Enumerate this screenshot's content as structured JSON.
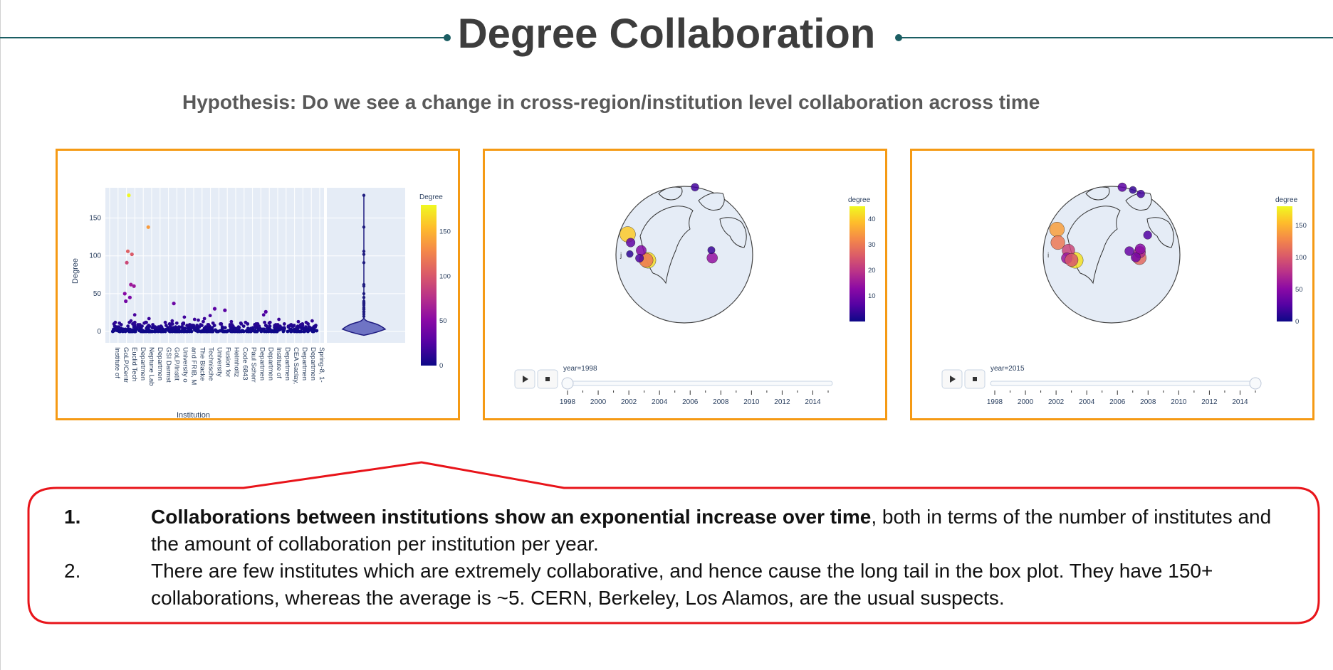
{
  "slide": {
    "title": "Degree Collaboration",
    "subtitle": "Hypothesis: Do we see a change in cross-region/institution level collaboration across time",
    "colors": {
      "accent_line": "#1b5e63",
      "panel_border": "#f59a14",
      "callout_border": "#e8141a"
    }
  },
  "chart_data": [
    {
      "type": "scatter",
      "ylabel": "Degree",
      "xlabel": "Institution",
      "y_ticks": [
        "0",
        "50",
        "100",
        "150"
      ],
      "ylim": [
        -15,
        190
      ],
      "x_tick_labels": [
        "Institute of",
        "GoLP/Centr",
        "Euclid Tech",
        "Departmen",
        "Neptune Lab",
        "Departmen",
        "GSI Darmst",
        "GoLP/Instit",
        "University o",
        "and FRIB, M",
        "The Blacke",
        "Technische",
        "University",
        "Fusion for",
        "Helmholtz",
        "Code 6843",
        "Paul Scherr",
        "Departmen",
        "Departmen",
        "Institute of",
        "Departmen",
        "CEA Saclay,",
        "Departmen",
        "Departmen",
        "Spring-8, 1-"
      ],
      "highlight_points": [
        {
          "x": 0.08,
          "y": 180,
          "value": 180
        },
        {
          "x": 0.175,
          "y": 138,
          "value": 138
        },
        {
          "x": 0.075,
          "y": 106,
          "value": 106
        },
        {
          "x": 0.095,
          "y": 102,
          "value": 102
        },
        {
          "x": 0.07,
          "y": 91,
          "value": 91
        },
        {
          "x": 0.09,
          "y": 62,
          "value": 62
        },
        {
          "x": 0.105,
          "y": 60,
          "value": 60
        },
        {
          "x": 0.06,
          "y": 50,
          "value": 50
        },
        {
          "x": 0.085,
          "y": 45,
          "value": 45
        },
        {
          "x": 0.065,
          "y": 40,
          "value": 40
        },
        {
          "x": 0.3,
          "y": 37,
          "value": 37
        },
        {
          "x": 0.5,
          "y": 30,
          "value": 30
        },
        {
          "x": 0.75,
          "y": 26,
          "value": 26
        },
        {
          "x": 0.55,
          "y": 28,
          "value": 28
        }
      ],
      "violin": {
        "min": 0,
        "max": 180,
        "outliers": [
          180,
          138,
          106,
          102,
          91,
          62,
          60,
          50,
          45,
          40,
          37,
          30,
          26
        ]
      },
      "colorbar": {
        "title": "Degree",
        "ticks": [
          "0",
          "50",
          "100",
          "150"
        ],
        "max": 180
      }
    },
    {
      "type": "scatter",
      "map_label": "j",
      "slider_label": "year=1998",
      "year": 1998,
      "slider_ticks": [
        "1998",
        "2000",
        "2002",
        "2004",
        "2006",
        "2008",
        "2010",
        "2012",
        "2014"
      ],
      "colorbar": {
        "title": "degree",
        "ticks": [
          "10",
          "20",
          "30",
          "40"
        ],
        "max": 45
      },
      "points": [
        {
          "lon": -118,
          "lat": 34,
          "degree": 40
        },
        {
          "lon": -74,
          "lat": 40,
          "degree": 42
        },
        {
          "lon": -76,
          "lat": 39,
          "degree": 30
        },
        {
          "lon": -88,
          "lat": 42,
          "degree": 12
        },
        {
          "lon": -106,
          "lat": 36,
          "degree": 8
        },
        {
          "lon": -84,
          "lat": 36,
          "degree": 6
        },
        {
          "lon": 6,
          "lat": 46,
          "degree": 14
        },
        {
          "lon": 139,
          "lat": 35,
          "degree": 5
        },
        {
          "lon": 10,
          "lat": 52,
          "degree": 4
        },
        {
          "lon": -97,
          "lat": 30,
          "degree": 3
        }
      ]
    },
    {
      "type": "scatter",
      "map_label": "i",
      "slider_label": "year=2015",
      "year": 2015,
      "slider_ticks": [
        "1998",
        "2000",
        "2002",
        "2004",
        "2006",
        "2008",
        "2010",
        "2012",
        "2014"
      ],
      "colorbar": {
        "title": "degree",
        "ticks": [
          "0",
          "50",
          "100",
          "150"
        ],
        "max": 180
      },
      "points": [
        {
          "lon": -122,
          "lat": 37,
          "degree": 140
        },
        {
          "lon": -74,
          "lat": 40,
          "degree": 170
        },
        {
          "lon": -106,
          "lat": 36,
          "degree": 120
        },
        {
          "lon": -88,
          "lat": 42,
          "degree": 90
        },
        {
          "lon": -84,
          "lat": 36,
          "degree": 60
        },
        {
          "lon": -78,
          "lat": 38,
          "degree": 100
        },
        {
          "lon": 6,
          "lat": 46,
          "degree": 110
        },
        {
          "lon": 10,
          "lat": 50,
          "degree": 70
        },
        {
          "lon": 2,
          "lat": 48,
          "degree": 40
        },
        {
          "lon": 13,
          "lat": 52,
          "degree": 50
        },
        {
          "lon": 139,
          "lat": 35,
          "degree": 30
        },
        {
          "lon": 116,
          "lat": 40,
          "degree": 20
        },
        {
          "lon": 127,
          "lat": 37,
          "degree": 15
        },
        {
          "lon": 37,
          "lat": 55,
          "degree": 25
        },
        {
          "lon": -3,
          "lat": 55,
          "degree": 35
        }
      ]
    }
  ],
  "findings": [
    {
      "number": "1.",
      "bold": "Collaborations between institutions show an exponential increase over time",
      "rest": ", both in terms of the number of institutes and the amount of collaboration per institution per year."
    },
    {
      "number": "2.",
      "bold": "",
      "rest": "There are few institutes which are extremely collaborative, and hence cause the long tail in the box plot. They have 150+ collaborations, whereas the average is ~5. CERN, Berkeley, Los Alamos, are the usual suspects."
    }
  ]
}
